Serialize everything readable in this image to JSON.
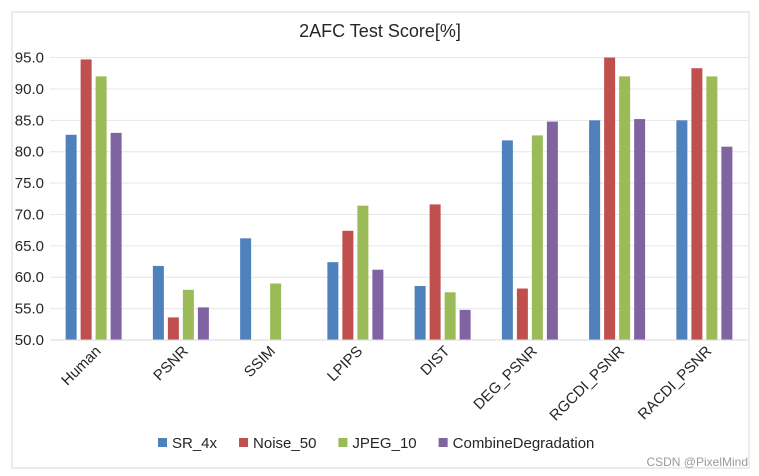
{
  "chart_data": {
    "type": "bar",
    "title": "2AFC Test Score[%]",
    "xlabel": "",
    "ylabel": "",
    "ylim": [
      50,
      97
    ],
    "yticks": [
      "50.0",
      "55.0",
      "60.0",
      "65.0",
      "70.0",
      "75.0",
      "80.0",
      "85.0",
      "90.0",
      "95.0"
    ],
    "grid": true,
    "legend_position": "bottom",
    "categories": [
      "Human",
      "PSNR",
      "SSIM",
      "LPIPS",
      "DIST",
      "DEG_PSNR",
      "RGCDI_PSNR",
      "RACDI_PSNR"
    ],
    "series": [
      {
        "name": "SR_4x",
        "color": "#4f81bd",
        "values": [
          82.7,
          61.8,
          66.2,
          62.4,
          58.6,
          81.8,
          85.0,
          85.0
        ]
      },
      {
        "name": "Noise_50",
        "color": "#c0504d",
        "values": [
          94.7,
          53.6,
          50.0,
          67.4,
          71.6,
          58.2,
          95.0,
          93.3
        ]
      },
      {
        "name": "JPEG_10",
        "color": "#9bbb59",
        "values": [
          92.0,
          58.0,
          59.0,
          71.4,
          57.6,
          82.6,
          92.0,
          92.0
        ]
      },
      {
        "name": "CombineDegradation",
        "color": "#8064a2",
        "values": [
          83.0,
          55.2,
          50.0,
          61.2,
          54.8,
          84.8,
          85.2,
          80.8
        ]
      }
    ]
  },
  "watermark": "CSDN @PixelMind"
}
